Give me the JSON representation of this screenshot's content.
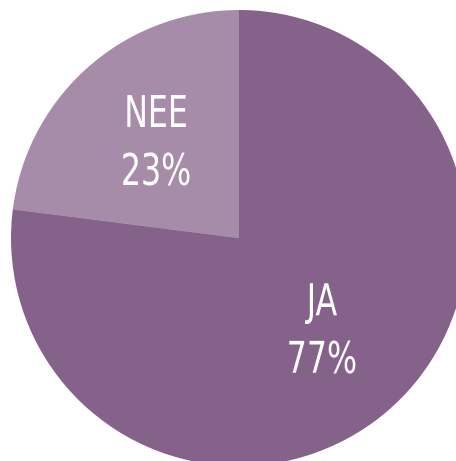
{
  "chart_data": {
    "type": "pie",
    "categories": [
      "JA",
      "NEE"
    ],
    "values": [
      77,
      23
    ],
    "value_labels": [
      "77%",
      "23%"
    ],
    "colors": [
      "#85628a",
      "#a78ca9"
    ]
  }
}
